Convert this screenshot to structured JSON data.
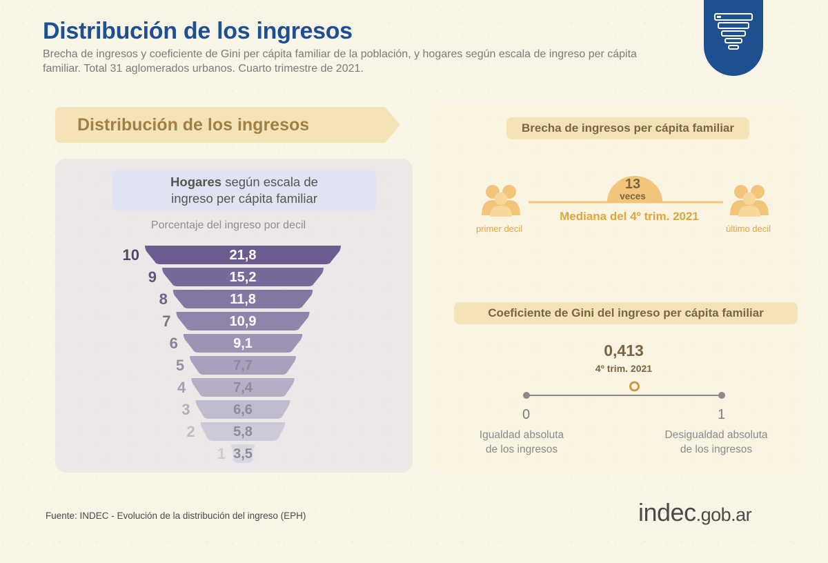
{
  "header": {
    "title": "Distribución de los ingresos",
    "subtitle": "Brecha de ingresos y coeficiente de Gini per cápita familiar de la población, y hogares según escala de ingreso per cápita familiar. Total 31 aglomerados urbanos. Cuarto trimestre de 2021."
  },
  "badge": {
    "icon": "funnel-chart-icon"
  },
  "section": {
    "banner": "Distribución de los ingresos"
  },
  "households": {
    "label_bold": "Hogares",
    "label_rest": " según escala de",
    "label_line2": "ingreso per cápita familiar",
    "caption": "Porcentaje del ingreso por decil"
  },
  "chart_data": [
    {
      "type": "bar",
      "title": "Hogares según escala de ingreso per cápita familiar",
      "ylabel": "Porcentaje del ingreso por decil",
      "categories": [
        "10",
        "9",
        "8",
        "7",
        "6",
        "5",
        "4",
        "3",
        "2",
        "1"
      ],
      "values": [
        21.8,
        15.2,
        11.8,
        10.9,
        9.1,
        7.7,
        7.4,
        6.6,
        5.8,
        3.5
      ],
      "value_labels": [
        "21,8",
        "15,2",
        "11,8",
        "10,9",
        "9,1",
        "7,7",
        "7,4",
        "6,6",
        "5,8",
        "3,5"
      ]
    }
  ],
  "income_gap": {
    "title": "Brecha de ingresos per cápita familiar",
    "times_value": "13",
    "times_word": "veces",
    "median_label": "Mediana del 4º trim. 2021",
    "left_label": "primer decil",
    "right_label": "último decil",
    "icon": "people-group-icon"
  },
  "gini": {
    "title": "Coeficiente de Gini del ingreso per cápita familiar",
    "value": "0,413",
    "value_num": 0.413,
    "period": "4º trim. 2021",
    "min_label": "0",
    "max_label": "1",
    "min_desc_line1": "Igualdad absoluta",
    "min_desc_line2": "de los ingresos",
    "max_desc_line1": "Desigualdad absoluta",
    "max_desc_line2": "de los ingresos"
  },
  "footer": {
    "source": "Fuente: INDEC - Evolución de la distribución del ingreso (EPH)",
    "logo_main": "indec",
    "logo_suffix": ".gob.ar"
  },
  "colors": {
    "title_blue": "#1d4f91",
    "gold": "#e0a53c",
    "banner_text": "#a07f48",
    "funnel_dark": "#6b5b8f",
    "funnel_light": "#d6d3de"
  }
}
